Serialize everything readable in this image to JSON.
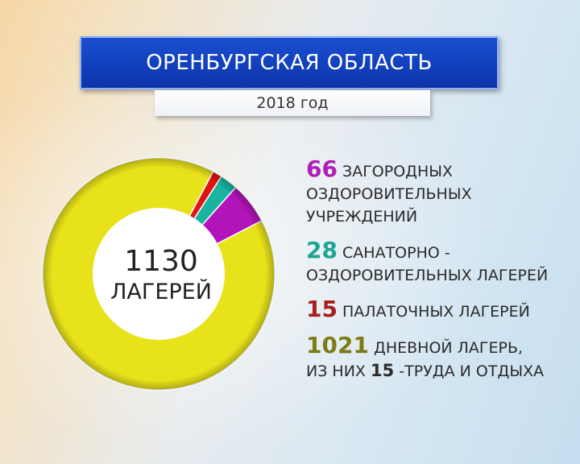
{
  "header": {
    "title": "ОРЕНБУРГСКАЯ ОБЛАСТЬ",
    "subtitle": "2018 год"
  },
  "center": {
    "total": "1130",
    "label": "ЛАГЕРЕЙ"
  },
  "legend": [
    {
      "number": "66",
      "lines": [
        "ЗАГОРОДНЫХ",
        "ОЗДОРОВИТЕЛЬНЫХ",
        "УЧРЕЖДЕНИЙ"
      ],
      "color": "#b01eb8"
    },
    {
      "number": "28",
      "lines": [
        "САНАТОРНО -",
        "ОЗДОРОВИТЕЛЬНЫХ ЛАГЕРЕЙ"
      ],
      "color": "#1da593"
    },
    {
      "number": "15",
      "lines": [
        "ПАЛАТОЧНЫХ ЛАГЕРЕЙ"
      ],
      "color": "#a51f1f"
    },
    {
      "number": "1021",
      "lines": [
        "ДНЕВНОЙ ЛАГЕРЬ,"
      ],
      "line2_prefix": "ИЗ НИХ",
      "line2_number": "15",
      "line2_suffix": "-ТРУДА И ОТДЫХА",
      "color": "#7e7a14"
    }
  ],
  "chart_data": {
    "type": "pie",
    "donut": true,
    "categories": [
      "загородных оздоровительных учреждений",
      "санаторно-оздоровительных лагерей",
      "палаточных лагерей",
      "дневной лагерь"
    ],
    "values": [
      66,
      28,
      15,
      1021
    ],
    "colors": [
      "#b114b8",
      "#19b3a0",
      "#e01414",
      "#e8e21a"
    ]
  }
}
